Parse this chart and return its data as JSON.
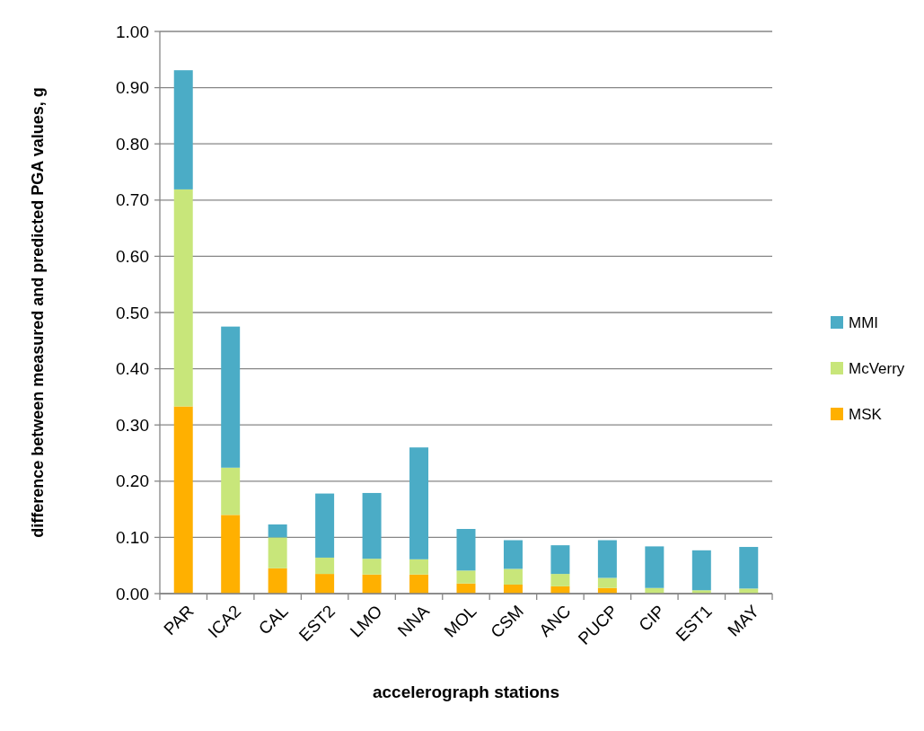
{
  "chart_data": {
    "type": "bar",
    "stacked": true,
    "xlabel": "accelerograph stations",
    "ylabel": "difference between measured and predicted PGA values, g",
    "categories": [
      "PAR",
      "ICA2",
      "CAL",
      "EST2",
      "LMO",
      "NNA",
      "MOL",
      "CSM",
      "ANC",
      "PUCP",
      "CIP",
      "EST1",
      "MAY"
    ],
    "series": [
      {
        "name": "MSK",
        "color": "#ffb000",
        "values": [
          0.333,
          0.14,
          0.045,
          0.035,
          0.034,
          0.034,
          0.018,
          0.016,
          0.013,
          0.01,
          0,
          0,
          0
        ]
      },
      {
        "name": "McVerry",
        "color": "#c8e67a",
        "values": [
          0.386,
          0.084,
          0.055,
          0.029,
          0.028,
          0.027,
          0.023,
          0.028,
          0.022,
          0.018,
          0.01,
          0.006,
          0.009
        ]
      },
      {
        "name": "MMI",
        "color": "#4bacc6",
        "values": [
          0.212,
          0.251,
          0.023,
          0.114,
          0.117,
          0.199,
          0.074,
          0.051,
          0.051,
          0.067,
          0.074,
          0.071,
          0.074
        ]
      }
    ],
    "ylim": [
      0,
      1
    ],
    "yticks": [
      {
        "value": 0,
        "label": "0.00"
      },
      {
        "value": 0.1,
        "label": "0.10"
      },
      {
        "value": 0.2,
        "label": "0.20"
      },
      {
        "value": 0.3,
        "label": "0.30"
      },
      {
        "value": 0.4,
        "label": "0.40"
      },
      {
        "value": 0.5,
        "label": "0.50"
      },
      {
        "value": 0.6,
        "label": "0.60"
      },
      {
        "value": 0.7,
        "label": "0.70"
      },
      {
        "value": 0.8,
        "label": "0.80"
      },
      {
        "value": 0.9,
        "label": "0.90"
      },
      {
        "value": 1,
        "label": "1.00"
      }
    ],
    "grid": "y",
    "legend": "right"
  }
}
